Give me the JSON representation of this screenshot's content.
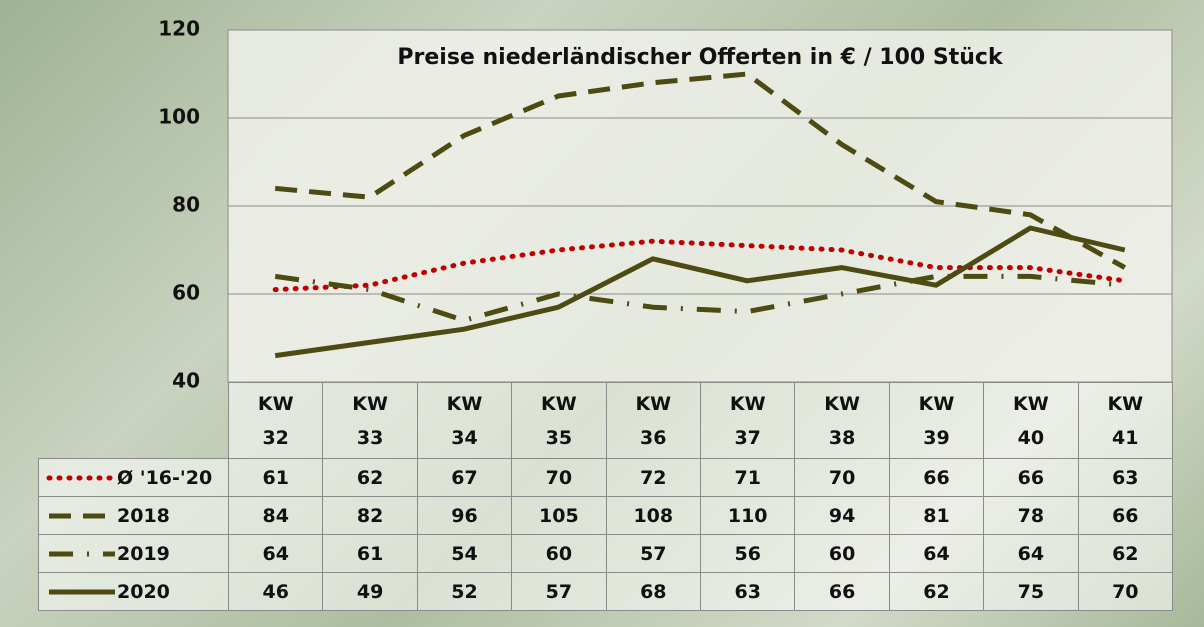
{
  "chart_data": {
    "type": "line",
    "title": "Preise niederländischer Offerten in € / 100 Stück",
    "categories": [
      "KW 32",
      "KW 33",
      "KW 34",
      "KW 35",
      "KW 36",
      "KW 37",
      "KW 38",
      "KW 39",
      "KW 40",
      "KW 41"
    ],
    "series": [
      {
        "name": "Ø '16-'20",
        "color": "#c00000",
        "dash": "dotted",
        "values": [
          61,
          62,
          67,
          70,
          72,
          71,
          70,
          66,
          66,
          63
        ]
      },
      {
        "name": "2018",
        "color": "#4d4a12",
        "dash": "dashed",
        "values": [
          84,
          82,
          96,
          105,
          108,
          110,
          94,
          81,
          78,
          66
        ]
      },
      {
        "name": "2019",
        "color": "#4d4a12",
        "dash": "dashdot",
        "values": [
          64,
          61,
          54,
          60,
          57,
          56,
          60,
          64,
          64,
          62
        ]
      },
      {
        "name": "2020",
        "color": "#4d4a12",
        "dash": "solid",
        "values": [
          46,
          49,
          52,
          57,
          68,
          63,
          66,
          62,
          75,
          70
        ]
      }
    ],
    "ylim": [
      40,
      120
    ],
    "yticks": [
      40,
      60,
      80,
      100,
      120
    ],
    "grid": true
  }
}
